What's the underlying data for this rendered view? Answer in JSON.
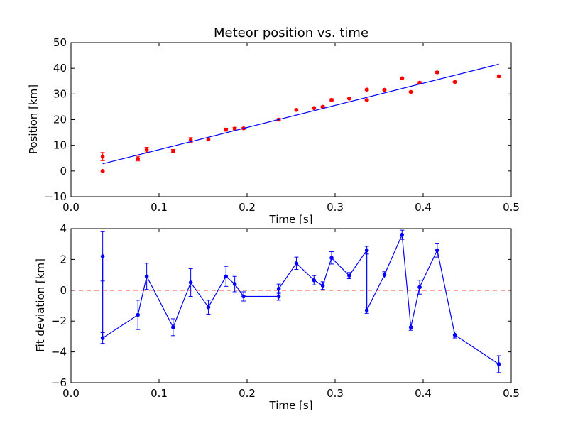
{
  "chart_data": [
    {
      "type": "scatter",
      "title": "Meteor position vs. time",
      "xlabel": "Time [s]",
      "ylabel": "Position [km]",
      "xlim": [
        0.0,
        0.5
      ],
      "ylim": [
        -10,
        50
      ],
      "xticks": [
        "0.0",
        "0.1",
        "0.2",
        "0.3",
        "0.4",
        "0.5"
      ],
      "yticks": [
        "−10",
        "0",
        "10",
        "20",
        "30",
        "40",
        "50"
      ],
      "grid": false,
      "series": [
        {
          "kind": "errorbar",
          "color": "#ff0000",
          "x": [
            0.036,
            0.036,
            0.076,
            0.086,
            0.116,
            0.136,
            0.156,
            0.176,
            0.186,
            0.196,
            0.236,
            0.256,
            0.276,
            0.286,
            0.296,
            0.316,
            0.336,
            0.336,
            0.356,
            0.376,
            0.386,
            0.396,
            0.416,
            0.436,
            0.486
          ],
          "y": [
            5.6,
            0.0,
            4.8,
            8.3,
            7.8,
            12.1,
            12.3,
            16.1,
            16.5,
            16.6,
            20.0,
            23.8,
            24.5,
            25.0,
            27.7,
            28.2,
            31.7,
            27.6,
            31.6,
            36.1,
            30.8,
            34.4,
            38.4,
            34.7,
            36.9
          ],
          "yerr": [
            1.6,
            0.3,
            0.9,
            0.9,
            0.6,
            0.9,
            0.5,
            0.6,
            0.5,
            0.3,
            0.4,
            0.4,
            0.3,
            0.3,
            0.4,
            0.2,
            0.3,
            0.2,
            0.2,
            0.2,
            0.3,
            0.3,
            0.4,
            0.2,
            0.5
          ]
        },
        {
          "kind": "fit-line",
          "color": "#0000ff",
          "x": [
            0.036,
            0.486
          ],
          "y": [
            2.8,
            41.6
          ]
        }
      ]
    },
    {
      "type": "line",
      "xlabel": "Time [s]",
      "ylabel": "Fit deviation [km]",
      "xlim": [
        0.0,
        0.5
      ],
      "ylim": [
        -6,
        4
      ],
      "xticks": [
        "0.0",
        "0.1",
        "0.2",
        "0.3",
        "0.4",
        "0.5"
      ],
      "yticks": [
        "−6",
        "−4",
        "−2",
        "0",
        "2",
        "4"
      ],
      "grid": false,
      "series": [
        {
          "kind": "errorbar-line",
          "color": "#0000ff",
          "x": [
            0.036,
            0.036,
            0.076,
            0.086,
            0.116,
            0.136,
            0.156,
            0.176,
            0.186,
            0.196,
            0.236,
            0.236,
            0.256,
            0.276,
            0.286,
            0.296,
            0.316,
            0.336,
            0.336,
            0.356,
            0.376,
            0.386,
            0.396,
            0.416,
            0.436,
            0.486
          ],
          "y": [
            2.2,
            -3.1,
            -1.6,
            0.9,
            -2.4,
            0.5,
            -1.1,
            0.9,
            0.4,
            -0.4,
            -0.4,
            0.1,
            1.75,
            0.65,
            0.3,
            2.1,
            0.95,
            2.6,
            -1.3,
            1.0,
            3.6,
            -2.4,
            0.2,
            2.6,
            -2.9,
            -4.8
          ],
          "yerr": [
            1.6,
            0.35,
            0.95,
            0.85,
            0.55,
            0.9,
            0.45,
            0.65,
            0.5,
            0.3,
            0.25,
            0.3,
            0.4,
            0.3,
            0.25,
            0.4,
            0.2,
            0.25,
            0.2,
            0.2,
            0.3,
            0.2,
            0.45,
            0.45,
            0.2,
            0.55
          ]
        },
        {
          "kind": "reference-line",
          "color": "#ff0000",
          "style": "dashed",
          "y": 0
        }
      ]
    }
  ]
}
